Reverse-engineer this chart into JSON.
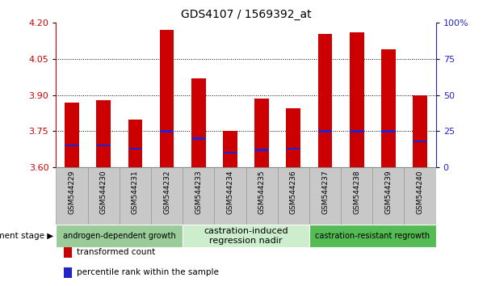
{
  "title": "GDS4107 / 1569392_at",
  "samples": [
    "GSM544229",
    "GSM544230",
    "GSM544231",
    "GSM544232",
    "GSM544233",
    "GSM544234",
    "GSM544235",
    "GSM544236",
    "GSM544237",
    "GSM544238",
    "GSM544239",
    "GSM544240"
  ],
  "transformed_counts": [
    3.87,
    3.88,
    3.8,
    4.17,
    3.97,
    3.75,
    3.885,
    3.845,
    4.155,
    4.16,
    4.09,
    3.9
  ],
  "percentile_ranks": [
    15,
    15,
    13,
    25,
    20,
    10,
    12,
    13,
    25,
    25,
    25,
    18
  ],
  "bar_bottom": 3.6,
  "ylim": [
    3.6,
    4.2
  ],
  "yticks": [
    3.6,
    3.75,
    3.9,
    4.05,
    4.2
  ],
  "right_yticks": [
    0,
    25,
    50,
    75,
    100
  ],
  "right_ylim": [
    0,
    100
  ],
  "bar_color": "#cc0000",
  "percentile_color": "#2222cc",
  "bar_width": 0.45,
  "groups": [
    {
      "label": "androgen-dependent growth",
      "start": 0,
      "end": 3,
      "color": "#99cc99",
      "fontsize": 7
    },
    {
      "label": "castration-induced\nregression nadir",
      "start": 4,
      "end": 7,
      "color": "#cceecc",
      "fontsize": 8
    },
    {
      "label": "castration-resistant regrowth",
      "start": 8,
      "end": 11,
      "color": "#55bb55",
      "fontsize": 7
    }
  ],
  "development_stage_label": "development stage",
  "legend_items": [
    {
      "color": "#cc0000",
      "label": "transformed count"
    },
    {
      "color": "#2222cc",
      "label": "percentile rank within the sample"
    }
  ],
  "left_axis_color": "#cc0000",
  "right_axis_color": "#2222cc",
  "cell_bg_color": "#c8c8c8",
  "cell_border_color": "#999999",
  "white_bg": "#ffffff"
}
